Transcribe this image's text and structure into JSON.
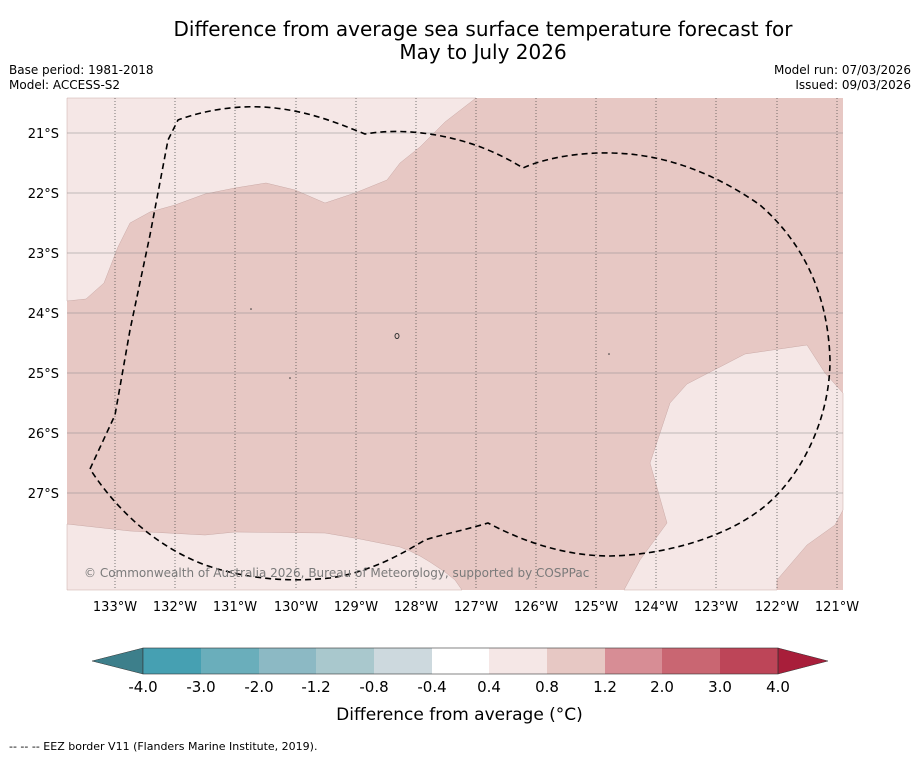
{
  "title_line1": "Difference from average sea surface temperature forecast for",
  "title_line2": "May to July 2026",
  "meta": {
    "base_period": "Base period: 1981-2018",
    "model": "Model: ACCESS-S2",
    "model_run": "Model run: 07/03/2026",
    "issued": "Issued: 09/03/2026"
  },
  "map": {
    "lat_labels": [
      "21°S",
      "22°S",
      "23°S",
      "24°S",
      "25°S",
      "26°S",
      "27°S"
    ],
    "lon_labels": [
      "133°W",
      "132°W",
      "131°W",
      "130°W",
      "129°W",
      "128°W",
      "127°W",
      "126°W",
      "125°W",
      "124°W",
      "123°W",
      "122°W",
      "121°W"
    ],
    "copyright": "© Commonwealth of Australia 2026, Bureau of Meteorology, supported by COSPPac",
    "colors": {
      "band_0_4_0_8": "#f5e7e6",
      "band_0_8_1_2": "#e7c8c4"
    }
  },
  "colorbar": {
    "tick_labels": [
      "-4.0",
      "-3.0",
      "-2.0",
      "-1.2",
      "-0.8",
      "-0.4",
      "0.4",
      "0.8",
      "1.2",
      "2.0",
      "3.0",
      "4.0"
    ],
    "colors": [
      "#3d7f8b",
      "#46a0b2",
      "#6aaebb",
      "#8cb9c4",
      "#a9c8cd",
      "#cdd9de",
      "#ffffff",
      "#f5e7e6",
      "#e7c8c4",
      "#d78d95",
      "#c96672",
      "#bd4558",
      "#a81e3a"
    ],
    "label": "Difference from average (°C)"
  },
  "footer": "--  --  -- EEZ border V11 (Flanders Marine Institute, 2019)."
}
